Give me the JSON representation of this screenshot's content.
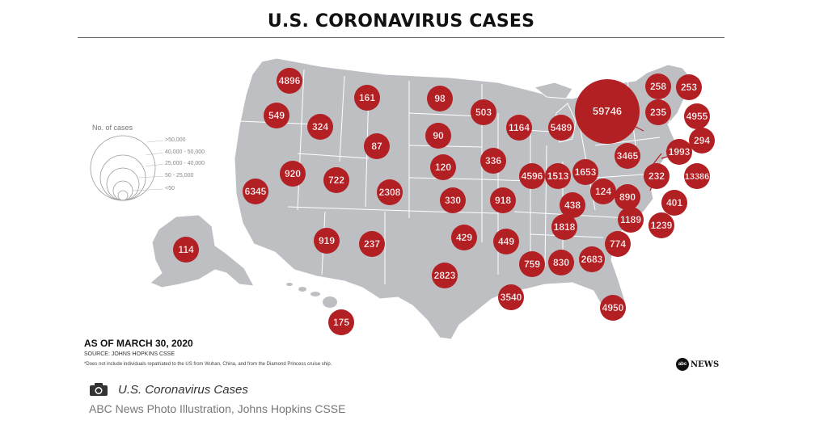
{
  "title": "U.S. CORONAVIRUS CASES",
  "legend": {
    "title": "No. of cases",
    "items": [
      ">50,000",
      "40,000 - 50,000",
      "25,000 - 40,000",
      "50 - 25,000",
      "<50"
    ]
  },
  "as_of": "AS OF MARCH 30, 2020",
  "source": "SOURCE: JOHNS HOPKINS CSSE",
  "footnote": "*Does not include individuals repatriated to the US from Wuhan, China, and from the Diamond Princess cruise ship.",
  "brand": {
    "logo": "abc",
    "name": "NEWS"
  },
  "caption": "U.S. Coronavirus Cases",
  "credit": "ABC News Photo Illustration, Johns Hopkins CSSE",
  "icons": {
    "caption": "camera-icon"
  },
  "colors": {
    "bubble": "#b22024",
    "land": "#bdbfc3",
    "border": "#ffffff"
  },
  "cases": [
    {
      "label": "WA",
      "value": "4896"
    },
    {
      "label": "OR",
      "value": "549"
    },
    {
      "label": "CA",
      "value": "6345"
    },
    {
      "label": "NV",
      "value": "920"
    },
    {
      "label": "ID",
      "value": "324"
    },
    {
      "label": "MT",
      "value": "161"
    },
    {
      "label": "WY",
      "value": "87"
    },
    {
      "label": "UT",
      "value": "722"
    },
    {
      "label": "AZ",
      "value": "919"
    },
    {
      "label": "CO",
      "value": "2308"
    },
    {
      "label": "NM",
      "value": "237"
    },
    {
      "label": "ND",
      "value": "98"
    },
    {
      "label": "SD",
      "value": "90"
    },
    {
      "label": "NE",
      "value": "120"
    },
    {
      "label": "KS",
      "value": "330"
    },
    {
      "label": "OK",
      "value": "429"
    },
    {
      "label": "TX",
      "value": "2823"
    },
    {
      "label": "MN",
      "value": "503"
    },
    {
      "label": "IA",
      "value": "336"
    },
    {
      "label": "MO",
      "value": "918"
    },
    {
      "label": "AR",
      "value": "449"
    },
    {
      "label": "LA",
      "value": "3540"
    },
    {
      "label": "WI",
      "value": "1164"
    },
    {
      "label": "MI",
      "value": "5489"
    },
    {
      "label": "IL",
      "value": "4596"
    },
    {
      "label": "IN",
      "value": "1513"
    },
    {
      "label": "OH",
      "value": "1653"
    },
    {
      "label": "KY",
      "value": "438"
    },
    {
      "label": "TN",
      "value": "1818"
    },
    {
      "label": "MS",
      "value": "759"
    },
    {
      "label": "AL",
      "value": "830"
    },
    {
      "label": "GA",
      "value": "2683"
    },
    {
      "label": "FL",
      "value": "4950"
    },
    {
      "label": "SC",
      "value": "774"
    },
    {
      "label": "NC",
      "value": "1189"
    },
    {
      "label": "VA",
      "value": "890"
    },
    {
      "label": "WV",
      "value": "124"
    },
    {
      "label": "PA",
      "value": "3465"
    },
    {
      "label": "NY",
      "value": "59746"
    },
    {
      "label": "VT",
      "value": "235"
    },
    {
      "label": "NH",
      "value": "258"
    },
    {
      "label": "ME",
      "value": "253"
    },
    {
      "label": "MA",
      "value": "4955"
    },
    {
      "label": "RI",
      "value": "294"
    },
    {
      "label": "CT",
      "value": "1993"
    },
    {
      "label": "NJ",
      "value": "13386"
    },
    {
      "label": "DE",
      "value": "232"
    },
    {
      "label": "MD",
      "value": "1239"
    },
    {
      "label": "DC",
      "value": "401"
    },
    {
      "label": "AK",
      "value": "114"
    },
    {
      "label": "HI",
      "value": "175"
    }
  ]
}
